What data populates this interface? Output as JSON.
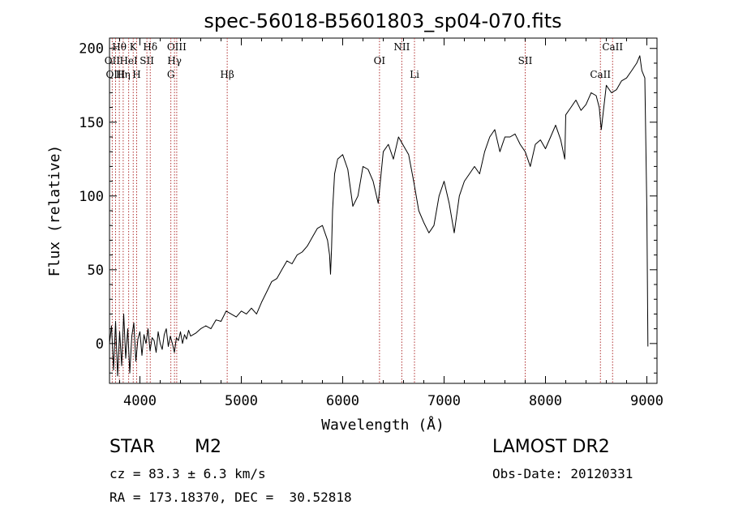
{
  "chart_data": {
    "type": "line",
    "title": "spec-56018-B5601803_sp04-070.fits",
    "xlabel": "Wavelength (Å)",
    "ylabel": "Flux (relative)",
    "xlim": [
      3700,
      9100
    ],
    "ylim": [
      -27,
      207
    ],
    "x_ticks": [
      4000,
      5000,
      6000,
      7000,
      8000,
      9000
    ],
    "y_ticks": [
      0,
      50,
      100,
      150,
      200
    ],
    "grid": false,
    "series": [
      {
        "x": [
          3700,
          3720,
          3740,
          3760,
          3780,
          3800,
          3820,
          3840,
          3860,
          3880,
          3900,
          3920,
          3940,
          3960,
          3980,
          4000,
          4020,
          4040,
          4060,
          4080,
          4100,
          4120,
          4140,
          4160,
          4180,
          4200,
          4220,
          4240,
          4260,
          4280,
          4300,
          4320,
          4340,
          4360,
          4380,
          4400,
          4420,
          4440,
          4460,
          4480,
          4500,
          4550,
          4600,
          4650,
          4700,
          4750,
          4800,
          4850,
          4900,
          4950,
          5000,
          5050,
          5100,
          5150,
          5200,
          5250,
          5300,
          5350,
          5400,
          5450,
          5500,
          5550,
          5600,
          5650,
          5700,
          5750,
          5800,
          5850,
          5870,
          5880,
          5890,
          5900,
          5920,
          5950,
          6000,
          6050,
          6100,
          6150,
          6200,
          6250,
          6300,
          6350,
          6400,
          6450,
          6500,
          6550,
          6600,
          6650,
          6700,
          6750,
          6800,
          6850,
          6900,
          6950,
          7000,
          7050,
          7100,
          7150,
          7200,
          7250,
          7300,
          7350,
          7400,
          7450,
          7500,
          7550,
          7600,
          7650,
          7700,
          7750,
          7800,
          7850,
          7900,
          7950,
          8000,
          8050,
          8100,
          8150,
          8190,
          8200,
          8250,
          8300,
          8350,
          8400,
          8450,
          8500,
          8530,
          8550,
          8600,
          8650,
          8700,
          8750,
          8800,
          8850,
          8900,
          8930,
          8950,
          8980,
          9000,
          9010
        ],
        "y": [
          0,
          12,
          -18,
          15,
          -22,
          8,
          -15,
          20,
          -10,
          10,
          -20,
          5,
          14,
          -12,
          3,
          8,
          -8,
          6,
          0,
          10,
          -5,
          4,
          2,
          -6,
          8,
          0,
          -4,
          6,
          10,
          -2,
          5,
          0,
          -6,
          4,
          2,
          8,
          0,
          6,
          3,
          9,
          5,
          7,
          10,
          12,
          10,
          16,
          15,
          22,
          20,
          18,
          22,
          20,
          24,
          20,
          28,
          35,
          42,
          44,
          50,
          56,
          54,
          60,
          62,
          66,
          72,
          78,
          80,
          70,
          60,
          47,
          65,
          90,
          115,
          125,
          128,
          118,
          93,
          100,
          120,
          118,
          110,
          95,
          130,
          135,
          125,
          140,
          134,
          128,
          110,
          90,
          82,
          75,
          80,
          100,
          110,
          95,
          75,
          100,
          110,
          115,
          120,
          115,
          130,
          140,
          145,
          130,
          140,
          140,
          142,
          135,
          130,
          120,
          135,
          138,
          132,
          140,
          148,
          138,
          125,
          155,
          160,
          165,
          158,
          162,
          170,
          168,
          160,
          145,
          175,
          170,
          172,
          178,
          180,
          185,
          190,
          195,
          185,
          180,
          90,
          -2
        ]
      }
    ],
    "spectral_lines": [
      {
        "label": "Hθ",
        "x": 3797,
        "row": 1
      },
      {
        "label": "OII",
        "x": 3727,
        "row": 2
      },
      {
        "label": "OIII",
        "x": 3760,
        "row": 3
      },
      {
        "label": "HeI",
        "x": 3889,
        "row": 2
      },
      {
        "label": "Hη",
        "x": 3835,
        "row": 3
      },
      {
        "label": "K",
        "x": 3934,
        "row": 1
      },
      {
        "label": "SII",
        "x": 4069,
        "row": 2
      },
      {
        "label": "H",
        "x": 3968,
        "row": 3
      },
      {
        "label": "Hδ",
        "x": 4102,
        "row": 1
      },
      {
        "label": "OIII",
        "x": 4363,
        "row": 1
      },
      {
        "label": "Hγ",
        "x": 4341,
        "row": 2
      },
      {
        "label": "G",
        "x": 4305,
        "row": 3
      },
      {
        "label": "Hβ",
        "x": 4861,
        "row": 3
      },
      {
        "label": "OI",
        "x": 6363,
        "row": 2
      },
      {
        "label": "NII",
        "x": 6583,
        "row": 1
      },
      {
        "label": "Li",
        "x": 6708,
        "row": 3
      },
      {
        "label": "SII",
        "x": 7800,
        "row": 2
      },
      {
        "label": "CaII",
        "x": 8662,
        "row": 1
      },
      {
        "label": "CaII",
        "x": 8542,
        "row": 3
      }
    ],
    "colors": {
      "spectrum": "#000000",
      "line_markers": "#b03030"
    }
  },
  "info": {
    "object_class": "STAR",
    "subclass": "M2",
    "survey": "LAMOST DR2",
    "redshift": "cz = 83.3 ± 6.3 km/s",
    "obs_date": "Obs-Date: 20120331",
    "coords": "RA = 173.18370, DEC =  30.52818"
  }
}
